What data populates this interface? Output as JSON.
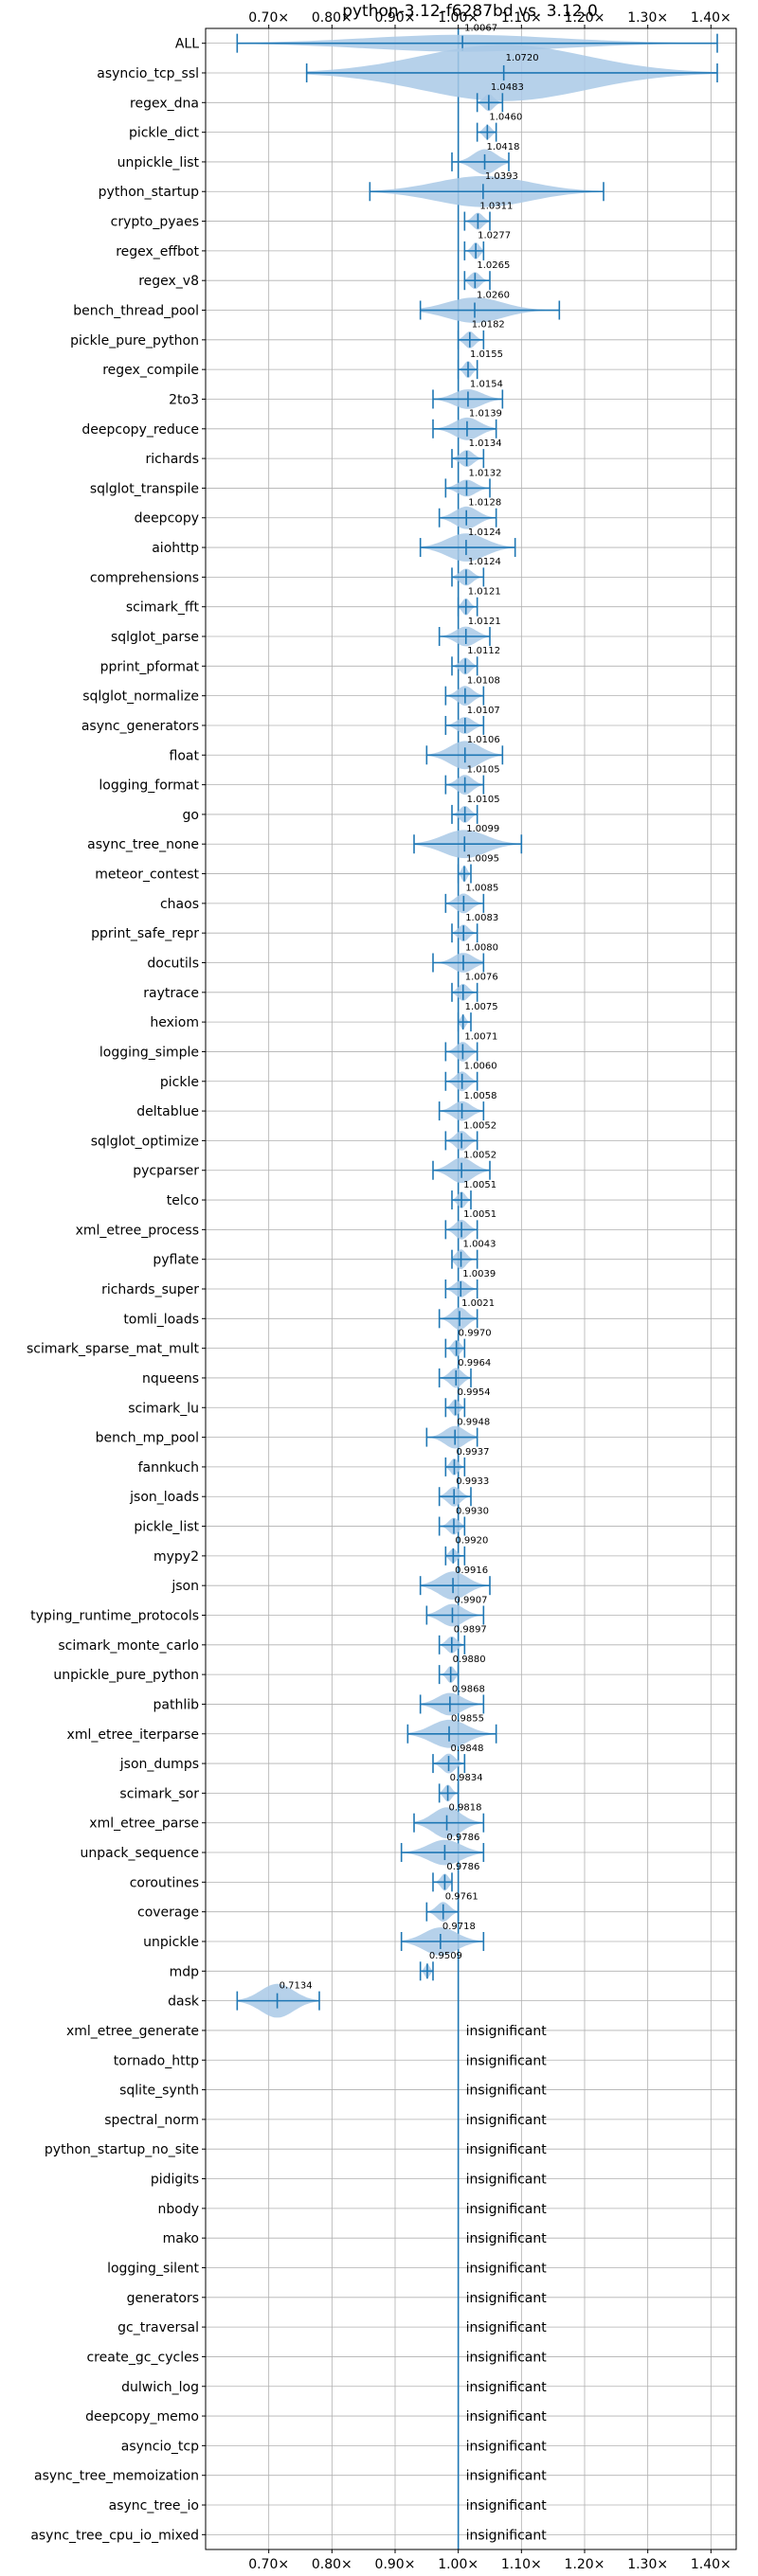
{
  "chart_data": {
    "type": "violin",
    "title": "python-3.12-f6287bd vs. 3.12.0",
    "xlim": [
      0.6,
      1.44
    ],
    "x_ticks": [
      0.7,
      0.8,
      0.9,
      1.0,
      1.1,
      1.2,
      1.3,
      1.4
    ],
    "x_tick_labels": [
      "0.70×",
      "0.80×",
      "0.90×",
      "1.00×",
      "1.10×",
      "1.20×",
      "1.30×",
      "1.40×"
    ],
    "x_axis_position": "top and bottom",
    "reference_line": 1.0,
    "grid": true,
    "colors": {
      "violin_fill": "#a9c9e6",
      "line": "#1f77b4",
      "grid": "#b0b0b0"
    },
    "insignificant_text": "insignificant",
    "benchmarks": [
      {
        "name": "ALL",
        "mean": 1.0067,
        "label": "1.0067",
        "lo": 0.65,
        "hi": 1.41,
        "width": 0.3
      },
      {
        "name": "asyncio_tcp_ssl",
        "mean": 1.072,
        "label": "1.0720",
        "lo": 0.76,
        "hi": 1.41,
        "width": 1.0
      },
      {
        "name": "regex_dna",
        "mean": 1.0483,
        "label": "1.0483",
        "lo": 1.03,
        "hi": 1.07,
        "width": 0.3
      },
      {
        "name": "pickle_dict",
        "mean": 1.046,
        "label": "1.0460",
        "lo": 1.03,
        "hi": 1.06,
        "width": 0.25
      },
      {
        "name": "unpickle_list",
        "mean": 1.0418,
        "label": "1.0418",
        "lo": 0.99,
        "hi": 1.08,
        "width": 0.45
      },
      {
        "name": "python_startup",
        "mean": 1.0393,
        "label": "1.0393",
        "lo": 0.86,
        "hi": 1.23,
        "width": 0.55
      },
      {
        "name": "crypto_pyaes",
        "mean": 1.0311,
        "label": "1.0311",
        "lo": 1.01,
        "hi": 1.05,
        "width": 0.3
      },
      {
        "name": "regex_effbot",
        "mean": 1.0277,
        "label": "1.0277",
        "lo": 1.01,
        "hi": 1.04,
        "width": 0.3
      },
      {
        "name": "regex_v8",
        "mean": 1.0265,
        "label": "1.0265",
        "lo": 1.01,
        "hi": 1.05,
        "width": 0.3
      },
      {
        "name": "bench_thread_pool",
        "mean": 1.026,
        "label": "1.0260",
        "lo": 0.94,
        "hi": 1.16,
        "width": 0.45
      },
      {
        "name": "pickle_pure_python",
        "mean": 1.0182,
        "label": "1.0182",
        "lo": 1.0,
        "hi": 1.04,
        "width": 0.3
      },
      {
        "name": "regex_compile",
        "mean": 1.0155,
        "label": "1.0155",
        "lo": 1.0,
        "hi": 1.03,
        "width": 0.3
      },
      {
        "name": "2to3",
        "mean": 1.0154,
        "label": "1.0154",
        "lo": 0.96,
        "hi": 1.07,
        "width": 0.35
      },
      {
        "name": "deepcopy_reduce",
        "mean": 1.0139,
        "label": "1.0139",
        "lo": 0.96,
        "hi": 1.06,
        "width": 0.4
      },
      {
        "name": "richards",
        "mean": 1.0134,
        "label": "1.0134",
        "lo": 0.99,
        "hi": 1.04,
        "width": 0.3
      },
      {
        "name": "sqlglot_transpile",
        "mean": 1.0132,
        "label": "1.0132",
        "lo": 0.98,
        "hi": 1.05,
        "width": 0.3
      },
      {
        "name": "deepcopy",
        "mean": 1.0128,
        "label": "1.0128",
        "lo": 0.97,
        "hi": 1.06,
        "width": 0.4
      },
      {
        "name": "aiohttp",
        "mean": 1.0124,
        "label": "1.0124",
        "lo": 0.94,
        "hi": 1.09,
        "width": 0.5
      },
      {
        "name": "comprehensions",
        "mean": 1.0124,
        "label": "1.0124",
        "lo": 0.99,
        "hi": 1.04,
        "width": 0.3
      },
      {
        "name": "scimark_fft",
        "mean": 1.0121,
        "label": "1.0121",
        "lo": 1.0,
        "hi": 1.03,
        "width": 0.3
      },
      {
        "name": "sqlglot_parse",
        "mean": 1.0121,
        "label": "1.0121",
        "lo": 0.97,
        "hi": 1.05,
        "width": 0.35
      },
      {
        "name": "pprint_pformat",
        "mean": 1.0112,
        "label": "1.0112",
        "lo": 0.99,
        "hi": 1.03,
        "width": 0.3
      },
      {
        "name": "sqlglot_normalize",
        "mean": 1.0108,
        "label": "1.0108",
        "lo": 0.98,
        "hi": 1.04,
        "width": 0.35
      },
      {
        "name": "async_generators",
        "mean": 1.0107,
        "label": "1.0107",
        "lo": 0.98,
        "hi": 1.04,
        "width": 0.3
      },
      {
        "name": "float",
        "mean": 1.0106,
        "label": "1.0106",
        "lo": 0.95,
        "hi": 1.07,
        "width": 0.5
      },
      {
        "name": "logging_format",
        "mean": 1.0105,
        "label": "1.0105",
        "lo": 0.98,
        "hi": 1.04,
        "width": 0.35
      },
      {
        "name": "go",
        "mean": 1.0105,
        "label": "1.0105",
        "lo": 0.99,
        "hi": 1.03,
        "width": 0.3
      },
      {
        "name": "async_tree_none",
        "mean": 1.0099,
        "label": "1.0099",
        "lo": 0.93,
        "hi": 1.1,
        "width": 0.5
      },
      {
        "name": "meteor_contest",
        "mean": 1.0095,
        "label": "1.0095",
        "lo": 1.0,
        "hi": 1.02,
        "width": 0.3
      },
      {
        "name": "chaos",
        "mean": 1.0085,
        "label": "1.0085",
        "lo": 0.98,
        "hi": 1.04,
        "width": 0.35
      },
      {
        "name": "pprint_safe_repr",
        "mean": 1.0083,
        "label": "1.0083",
        "lo": 0.99,
        "hi": 1.03,
        "width": 0.3
      },
      {
        "name": "docutils",
        "mean": 1.008,
        "label": "1.0080",
        "lo": 0.96,
        "hi": 1.04,
        "width": 0.35
      },
      {
        "name": "raytrace",
        "mean": 1.0076,
        "label": "1.0076",
        "lo": 0.99,
        "hi": 1.03,
        "width": 0.3
      },
      {
        "name": "hexiom",
        "mean": 1.0075,
        "label": "1.0075",
        "lo": 1.0,
        "hi": 1.02,
        "width": 0.25
      },
      {
        "name": "logging_simple",
        "mean": 1.0071,
        "label": "1.0071",
        "lo": 0.98,
        "hi": 1.03,
        "width": 0.35
      },
      {
        "name": "pickle",
        "mean": 1.006,
        "label": "1.0060",
        "lo": 0.98,
        "hi": 1.03,
        "width": 0.35
      },
      {
        "name": "deltablue",
        "mean": 1.0058,
        "label": "1.0058",
        "lo": 0.97,
        "hi": 1.04,
        "width": 0.35
      },
      {
        "name": "sqlglot_optimize",
        "mean": 1.0052,
        "label": "1.0052",
        "lo": 0.98,
        "hi": 1.03,
        "width": 0.35
      },
      {
        "name": "pycparser",
        "mean": 1.0052,
        "label": "1.0052",
        "lo": 0.96,
        "hi": 1.05,
        "width": 0.45
      },
      {
        "name": "telco",
        "mean": 1.0051,
        "label": "1.0051",
        "lo": 0.99,
        "hi": 1.02,
        "width": 0.3
      },
      {
        "name": "xml_etree_process",
        "mean": 1.0051,
        "label": "1.0051",
        "lo": 0.98,
        "hi": 1.03,
        "width": 0.35
      },
      {
        "name": "pyflate",
        "mean": 1.0043,
        "label": "1.0043",
        "lo": 0.99,
        "hi": 1.03,
        "width": 0.35
      },
      {
        "name": "richards_super",
        "mean": 1.0039,
        "label": "1.0039",
        "lo": 0.98,
        "hi": 1.03,
        "width": 0.3
      },
      {
        "name": "tomli_loads",
        "mean": 1.0021,
        "label": "1.0021",
        "lo": 0.97,
        "hi": 1.03,
        "width": 0.4
      },
      {
        "name": "scimark_sparse_mat_mult",
        "mean": 0.997,
        "label": "0.9970",
        "lo": 0.98,
        "hi": 1.01,
        "width": 0.3
      },
      {
        "name": "nqueens",
        "mean": 0.9964,
        "label": "0.9964",
        "lo": 0.97,
        "hi": 1.02,
        "width": 0.35
      },
      {
        "name": "scimark_lu",
        "mean": 0.9954,
        "label": "0.9954",
        "lo": 0.98,
        "hi": 1.01,
        "width": 0.3
      },
      {
        "name": "bench_mp_pool",
        "mean": 0.9948,
        "label": "0.9948",
        "lo": 0.95,
        "hi": 1.03,
        "width": 0.4
      },
      {
        "name": "fannkuch",
        "mean": 0.9937,
        "label": "0.9937",
        "lo": 0.98,
        "hi": 1.01,
        "width": 0.3
      },
      {
        "name": "json_loads",
        "mean": 0.9933,
        "label": "0.9933",
        "lo": 0.97,
        "hi": 1.02,
        "width": 0.35
      },
      {
        "name": "pickle_list",
        "mean": 0.993,
        "label": "0.9930",
        "lo": 0.97,
        "hi": 1.01,
        "width": 0.3
      },
      {
        "name": "mypy2",
        "mean": 0.992,
        "label": "0.9920",
        "lo": 0.98,
        "hi": 1.01,
        "width": 0.25
      },
      {
        "name": "json",
        "mean": 0.9916,
        "label": "0.9916",
        "lo": 0.94,
        "hi": 1.05,
        "width": 0.5
      },
      {
        "name": "typing_runtime_protocols",
        "mean": 0.9907,
        "label": "0.9907",
        "lo": 0.95,
        "hi": 1.04,
        "width": 0.4
      },
      {
        "name": "scimark_monte_carlo",
        "mean": 0.9897,
        "label": "0.9897",
        "lo": 0.97,
        "hi": 1.01,
        "width": 0.3
      },
      {
        "name": "unpickle_pure_python",
        "mean": 0.988,
        "label": "0.9880",
        "lo": 0.97,
        "hi": 1.0,
        "width": 0.3
      },
      {
        "name": "pathlib",
        "mean": 0.9868,
        "label": "0.9868",
        "lo": 0.94,
        "hi": 1.04,
        "width": 0.4
      },
      {
        "name": "xml_etree_iterparse",
        "mean": 0.9855,
        "label": "0.9855",
        "lo": 0.92,
        "hi": 1.06,
        "width": 0.5
      },
      {
        "name": "json_dumps",
        "mean": 0.9848,
        "label": "0.9848",
        "lo": 0.96,
        "hi": 1.01,
        "width": 0.35
      },
      {
        "name": "scimark_sor",
        "mean": 0.9834,
        "label": "0.9834",
        "lo": 0.97,
        "hi": 1.0,
        "width": 0.3
      },
      {
        "name": "xml_etree_parse",
        "mean": 0.9818,
        "label": "0.9818",
        "lo": 0.93,
        "hi": 1.04,
        "width": 0.55
      },
      {
        "name": "unpack_sequence",
        "mean": 0.9786,
        "label": "0.9786",
        "lo": 0.91,
        "hi": 1.04,
        "width": 0.45
      },
      {
        "name": "coroutines",
        "mean": 0.9786,
        "label": "0.9786",
        "lo": 0.96,
        "hi": 0.99,
        "width": 0.3
      },
      {
        "name": "coverage",
        "mean": 0.9761,
        "label": "0.9761",
        "lo": 0.95,
        "hi": 1.0,
        "width": 0.35
      },
      {
        "name": "unpickle",
        "mean": 0.9718,
        "label": "0.9718",
        "lo": 0.91,
        "hi": 1.04,
        "width": 0.5
      },
      {
        "name": "mdp",
        "mean": 0.9509,
        "label": "0.9509",
        "lo": 0.94,
        "hi": 0.96,
        "width": 0.25
      },
      {
        "name": "dask",
        "mean": 0.7134,
        "label": "0.7134",
        "lo": 0.65,
        "hi": 0.78,
        "width": 0.6
      },
      {
        "name": "xml_etree_generate",
        "insignificant": true
      },
      {
        "name": "tornado_http",
        "insignificant": true
      },
      {
        "name": "sqlite_synth",
        "insignificant": true
      },
      {
        "name": "spectral_norm",
        "insignificant": true
      },
      {
        "name": "python_startup_no_site",
        "insignificant": true
      },
      {
        "name": "pidigits",
        "insignificant": true
      },
      {
        "name": "nbody",
        "insignificant": true
      },
      {
        "name": "mako",
        "insignificant": true
      },
      {
        "name": "logging_silent",
        "insignificant": true
      },
      {
        "name": "generators",
        "insignificant": true
      },
      {
        "name": "gc_traversal",
        "insignificant": true
      },
      {
        "name": "create_gc_cycles",
        "insignificant": true
      },
      {
        "name": "dulwich_log",
        "insignificant": true
      },
      {
        "name": "deepcopy_memo",
        "insignificant": true
      },
      {
        "name": "asyncio_tcp",
        "insignificant": true
      },
      {
        "name": "async_tree_memoization",
        "insignificant": true
      },
      {
        "name": "async_tree_io",
        "insignificant": true
      },
      {
        "name": "async_tree_cpu_io_mixed",
        "insignificant": true
      }
    ]
  }
}
